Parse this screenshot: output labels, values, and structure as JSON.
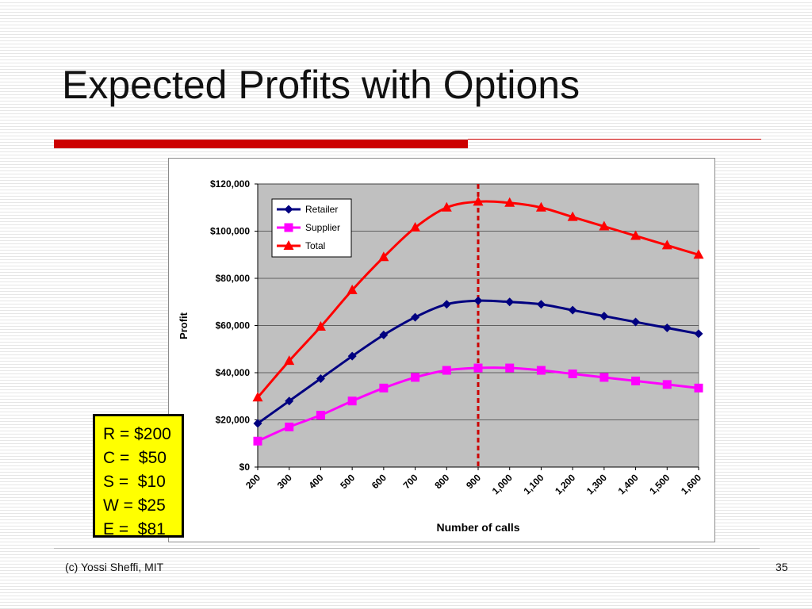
{
  "slide": {
    "title": "Expected Profits with Options",
    "footer": "(c) Yossi Sheffi, MIT",
    "page_number": "35",
    "parameters": [
      "R = $200",
      "C =  $50",
      "S =  $10",
      "W = $25",
      "E =  $81"
    ]
  },
  "colors": {
    "title_rule": "#cc0000",
    "plot_background": "#c0c0c0",
    "parameter_box": "#ffff00",
    "marker_line": "#cc0000"
  },
  "chart_data": {
    "type": "line",
    "xlabel": "Number of calls",
    "ylabel": "Profit",
    "categories": [
      "200",
      "300",
      "400",
      "500",
      "600",
      "700",
      "800",
      "900",
      "1,000",
      "1,100",
      "1,200",
      "1,300",
      "1,400",
      "1,500",
      "1,600"
    ],
    "ylim": [
      0,
      120000
    ],
    "yticks": [
      0,
      20000,
      40000,
      60000,
      80000,
      100000,
      120000
    ],
    "ytick_labels": [
      "$0",
      "$20,000",
      "$40,000",
      "$60,000",
      "$80,000",
      "$100,000",
      "$120,000"
    ],
    "grid": true,
    "legend_position": "top-left",
    "vertical_marker_category": "900",
    "series": [
      {
        "name": "Retailer",
        "color": "#000080",
        "marker": "diamond",
        "values": [
          18500,
          28000,
          37500,
          47000,
          56000,
          63500,
          69000,
          70500,
          70000,
          69000,
          66500,
          64000,
          61500,
          59000,
          56500
        ]
      },
      {
        "name": "Supplier",
        "color": "#ff00ff",
        "marker": "square",
        "values": [
          11000,
          17000,
          22000,
          28000,
          33500,
          38000,
          41000,
          42000,
          42000,
          41000,
          39500,
          38000,
          36500,
          35000,
          33500
        ]
      },
      {
        "name": "Total",
        "color": "#ff0000",
        "marker": "triangle",
        "values": [
          29500,
          45000,
          59500,
          75000,
          89000,
          101500,
          110000,
          112500,
          112000,
          110000,
          106000,
          102000,
          98000,
          94000,
          90000
        ]
      }
    ]
  }
}
